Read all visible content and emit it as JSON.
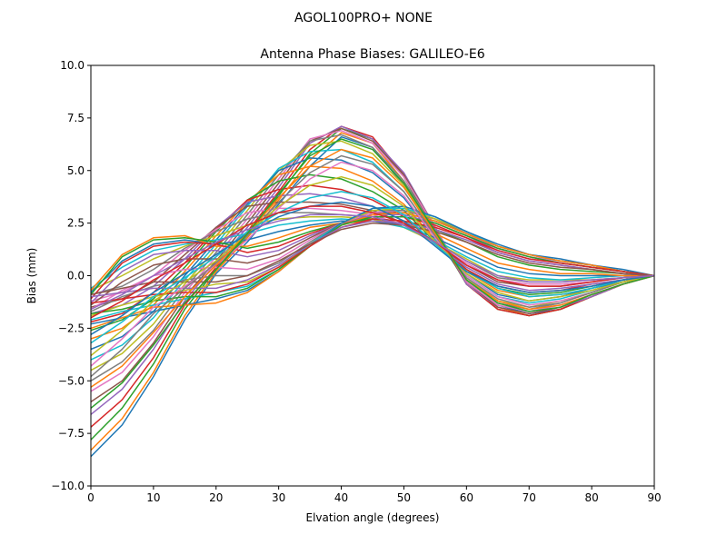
{
  "figure": {
    "suptitle": "AGOL100PRO+     NONE"
  },
  "chart_data": {
    "type": "line",
    "title": "Antenna Phase Biases: GALILEO-E6",
    "xlabel": "Elvation angle (degrees)",
    "ylabel": "Bias (mm)",
    "xlim": [
      0,
      90
    ],
    "ylim": [
      -10,
      10
    ],
    "xticks": [
      0,
      10,
      20,
      30,
      40,
      50,
      60,
      70,
      80,
      90
    ],
    "yticks": [
      -10.0,
      -7.5,
      -5.0,
      -2.5,
      0.0,
      2.5,
      5.0,
      7.5,
      10.0
    ],
    "ytick_labels": [
      "−10.0",
      "−7.5",
      "−5.0",
      "−2.5",
      "0.0",
      "2.5",
      "5.0",
      "7.5",
      "10.0"
    ],
    "grid": false,
    "colors": [
      "#1f77b4",
      "#ff7f0e",
      "#2ca02c",
      "#d62728",
      "#9467bd",
      "#8c564b",
      "#e377c2",
      "#7f7f7f",
      "#bcbd22",
      "#17becf"
    ],
    "x": [
      0,
      5,
      10,
      15,
      20,
      25,
      30,
      35,
      40,
      45,
      50,
      55,
      60,
      65,
      70,
      75,
      80,
      85,
      90
    ],
    "series": [
      {
        "values": [
          -8.6,
          -7.1,
          -4.8,
          -2.1,
          0.1,
          1.6,
          3.4,
          5.2,
          6.6,
          6.1,
          4.3,
          1.9,
          -0.3,
          -1.4,
          -1.8,
          -1.6,
          -1.0,
          -0.4,
          0.0
        ]
      },
      {
        "values": [
          -8.3,
          -6.8,
          -4.6,
          -1.9,
          0.2,
          1.8,
          3.6,
          5.5,
          6.8,
          6.3,
          4.5,
          2.0,
          -0.3,
          -1.5,
          -1.9,
          -1.6,
          -1.0,
          -0.4,
          0.0
        ]
      },
      {
        "values": [
          -7.8,
          -6.3,
          -4.2,
          -1.6,
          0.3,
          1.9,
          3.8,
          5.8,
          7.0,
          6.5,
          4.7,
          2.1,
          -0.4,
          -1.6,
          -1.9,
          -1.6,
          -1.0,
          -0.4,
          0.0
        ]
      },
      {
        "values": [
          -7.2,
          -5.9,
          -3.9,
          -1.4,
          0.4,
          2.1,
          4.0,
          6.0,
          7.1,
          6.6,
          4.8,
          2.2,
          -0.4,
          -1.6,
          -1.9,
          -1.6,
          -1.0,
          -0.4,
          0.0
        ]
      },
      {
        "values": [
          -6.6,
          -5.4,
          -3.5,
          -1.2,
          0.6,
          2.3,
          4.2,
          6.3,
          7.1,
          6.5,
          4.9,
          2.3,
          -0.4,
          -1.5,
          -1.8,
          -1.5,
          -1.0,
          -0.4,
          0.0
        ]
      },
      {
        "values": [
          -6.0,
          -5.0,
          -3.2,
          -1.0,
          0.7,
          2.5,
          4.4,
          6.4,
          7.0,
          6.4,
          4.8,
          2.3,
          -0.3,
          -1.5,
          -1.8,
          -1.5,
          -0.9,
          -0.4,
          0.0
        ]
      },
      {
        "values": [
          -5.5,
          -4.6,
          -2.9,
          -0.8,
          0.9,
          2.7,
          4.6,
          6.5,
          6.9,
          6.3,
          4.7,
          2.3,
          -0.3,
          -1.4,
          -1.7,
          -1.4,
          -0.9,
          -0.4,
          0.0
        ]
      },
      {
        "values": [
          -5.0,
          -4.1,
          -2.6,
          -0.6,
          1.1,
          2.9,
          4.8,
          6.4,
          6.7,
          6.1,
          4.5,
          2.2,
          -0.2,
          -1.3,
          -1.6,
          -1.3,
          -0.8,
          -0.3,
          0.0
        ]
      },
      {
        "values": [
          -4.5,
          -3.7,
          -2.3,
          -0.4,
          1.3,
          3.1,
          5.0,
          6.2,
          6.4,
          5.8,
          4.3,
          2.1,
          -0.1,
          -1.2,
          -1.5,
          -1.2,
          -0.8,
          -0.3,
          0.0
        ]
      },
      {
        "values": [
          -4.0,
          -3.3,
          -2.0,
          -0.2,
          1.5,
          3.3,
          5.1,
          5.9,
          6.0,
          5.4,
          4.0,
          1.9,
          0.0,
          -1.0,
          -1.3,
          -1.1,
          -0.7,
          -0.3,
          0.0
        ]
      },
      {
        "values": [
          -3.5,
          -2.9,
          -1.7,
          0.0,
          1.7,
          3.4,
          5.0,
          5.6,
          5.5,
          4.9,
          3.7,
          1.8,
          0.1,
          -0.9,
          -1.2,
          -1.0,
          -0.6,
          -0.3,
          0.0
        ]
      },
      {
        "values": [
          -3.0,
          -2.5,
          -1.4,
          0.2,
          1.9,
          3.5,
          4.8,
          5.2,
          5.1,
          4.5,
          3.4,
          1.7,
          0.2,
          -0.7,
          -1.0,
          -0.9,
          -0.6,
          -0.2,
          0.0
        ]
      },
      {
        "values": [
          -2.6,
          -2.1,
          -1.1,
          0.4,
          2.1,
          3.6,
          4.5,
          4.8,
          4.6,
          4.0,
          3.1,
          1.6,
          0.3,
          -0.6,
          -0.9,
          -0.8,
          -0.5,
          -0.2,
          0.0
        ]
      },
      {
        "values": [
          -2.2,
          -1.8,
          -0.8,
          0.6,
          2.2,
          3.6,
          4.1,
          4.3,
          4.1,
          3.6,
          2.8,
          1.5,
          0.3,
          -0.5,
          -0.8,
          -0.7,
          -0.4,
          -0.2,
          0.0
        ]
      },
      {
        "values": [
          -1.8,
          -1.4,
          -0.5,
          0.8,
          2.3,
          3.5,
          3.8,
          3.9,
          3.7,
          3.3,
          2.6,
          1.5,
          0.4,
          -0.4,
          -0.7,
          -0.6,
          -0.4,
          -0.2,
          0.0
        ]
      },
      {
        "values": [
          -1.5,
          -1.1,
          -0.3,
          1.0,
          2.3,
          3.3,
          3.5,
          3.5,
          3.4,
          3.1,
          2.5,
          1.5,
          0.5,
          -0.3,
          -0.5,
          -0.5,
          -0.3,
          -0.1,
          0.0
        ]
      },
      {
        "values": [
          -1.2,
          -0.8,
          0.0,
          1.2,
          2.2,
          3.0,
          3.2,
          3.2,
          3.1,
          2.9,
          2.4,
          1.5,
          0.6,
          -0.2,
          -0.4,
          -0.4,
          -0.3,
          -0.1,
          0.0
        ]
      },
      {
        "values": [
          -0.9,
          -0.5,
          0.3,
          1.3,
          2.1,
          2.7,
          3.0,
          3.0,
          2.9,
          2.8,
          2.3,
          1.6,
          0.7,
          -0.1,
          -0.3,
          -0.3,
          -0.2,
          -0.1,
          0.0
        ]
      },
      {
        "values": [
          -0.7,
          0.0,
          0.8,
          1.4,
          1.9,
          2.4,
          2.7,
          2.8,
          2.8,
          2.7,
          2.3,
          1.6,
          0.8,
          0.0,
          -0.2,
          -0.2,
          -0.2,
          -0.1,
          0.0
        ]
      },
      {
        "values": [
          -0.6,
          0.4,
          1.2,
          1.5,
          1.7,
          2.0,
          2.4,
          2.6,
          2.7,
          2.6,
          2.3,
          1.7,
          0.9,
          0.2,
          -0.1,
          -0.2,
          -0.1,
          0.0,
          0.0
        ]
      },
      {
        "values": [
          -0.8,
          0.7,
          1.5,
          1.7,
          1.5,
          1.7,
          2.1,
          2.4,
          2.6,
          2.6,
          2.4,
          1.8,
          1.1,
          0.4,
          0.1,
          0.0,
          0.0,
          0.0,
          0.0
        ]
      },
      {
        "values": [
          -0.7,
          1.0,
          1.8,
          1.9,
          1.4,
          1.4,
          1.8,
          2.3,
          2.5,
          2.6,
          2.5,
          2.0,
          1.3,
          0.6,
          0.3,
          0.1,
          0.1,
          0.0,
          0.0
        ]
      },
      {
        "values": [
          -0.9,
          0.9,
          1.7,
          1.8,
          1.6,
          1.3,
          1.6,
          2.1,
          2.5,
          2.7,
          2.6,
          2.2,
          1.6,
          0.9,
          0.5,
          0.3,
          0.2,
          0.1,
          0.0
        ]
      },
      {
        "values": [
          -1.1,
          0.6,
          1.4,
          1.6,
          1.5,
          1.1,
          1.4,
          2.0,
          2.5,
          2.8,
          2.8,
          2.4,
          1.8,
          1.1,
          0.7,
          0.5,
          0.3,
          0.1,
          0.0
        ]
      },
      {
        "values": [
          -1.3,
          0.2,
          1.0,
          1.2,
          1.2,
          0.9,
          1.2,
          1.9,
          2.5,
          2.9,
          2.9,
          2.5,
          1.9,
          1.2,
          0.8,
          0.6,
          0.4,
          0.2,
          0.0
        ]
      },
      {
        "values": [
          -1.4,
          -0.3,
          0.5,
          0.8,
          0.8,
          0.6,
          1.0,
          1.8,
          2.5,
          3.0,
          3.0,
          2.6,
          2.0,
          1.3,
          0.9,
          0.6,
          0.4,
          0.2,
          0.0
        ]
      },
      {
        "values": [
          -1.6,
          -0.7,
          0.0,
          0.3,
          0.4,
          0.3,
          0.8,
          1.7,
          2.5,
          3.0,
          3.1,
          2.7,
          2.0,
          1.3,
          0.9,
          0.7,
          0.5,
          0.2,
          0.0
        ]
      },
      {
        "values": [
          -1.7,
          -1.0,
          -0.5,
          -0.2,
          0.0,
          0.0,
          0.6,
          1.6,
          2.5,
          3.1,
          3.1,
          2.7,
          2.0,
          1.4,
          1.0,
          0.7,
          0.5,
          0.2,
          0.0
        ]
      },
      {
        "values": [
          -1.9,
          -1.4,
          -1.0,
          -0.7,
          -0.4,
          -0.3,
          0.4,
          1.5,
          2.5,
          3.1,
          3.2,
          2.7,
          2.1,
          1.4,
          1.0,
          0.7,
          0.5,
          0.2,
          0.0
        ]
      },
      {
        "values": [
          -2.1,
          -1.7,
          -1.4,
          -1.1,
          -0.8,
          -0.5,
          0.3,
          1.5,
          2.5,
          3.2,
          3.2,
          2.8,
          2.1,
          1.4,
          1.0,
          0.7,
          0.5,
          0.2,
          0.0
        ]
      },
      {
        "values": [
          -2.3,
          -2.0,
          -1.7,
          -1.4,
          -1.1,
          -0.7,
          0.2,
          1.4,
          2.5,
          3.2,
          3.3,
          2.8,
          2.1,
          1.5,
          1.0,
          0.8,
          0.5,
          0.3,
          0.0
        ]
      },
      {
        "values": [
          -2.5,
          -2.0,
          -1.5,
          -1.4,
          -1.3,
          -0.8,
          0.2,
          1.4,
          2.4,
          2.9,
          3.0,
          2.6,
          2.0,
          1.4,
          1.0,
          0.7,
          0.5,
          0.2,
          0.0
        ]
      },
      {
        "values": [
          -1.8,
          -1.6,
          -1.2,
          -1.0,
          -1.0,
          -0.6,
          0.3,
          1.4,
          2.4,
          2.8,
          2.8,
          2.5,
          1.9,
          1.3,
          0.9,
          0.6,
          0.4,
          0.2,
          0.0
        ]
      },
      {
        "values": [
          -1.3,
          -1.1,
          -0.9,
          -0.8,
          -0.8,
          -0.4,
          0.4,
          1.4,
          2.3,
          2.7,
          2.6,
          2.3,
          1.8,
          1.2,
          0.8,
          0.6,
          0.4,
          0.2,
          0.0
        ]
      },
      {
        "values": [
          -1.0,
          -0.8,
          -0.6,
          -0.6,
          -0.6,
          -0.2,
          0.5,
          1.5,
          2.3,
          2.6,
          2.5,
          2.2,
          1.7,
          1.1,
          0.7,
          0.5,
          0.3,
          0.1,
          0.0
        ]
      },
      {
        "values": [
          -0.9,
          -0.6,
          -0.3,
          -0.3,
          -0.3,
          0.0,
          0.7,
          1.5,
          2.2,
          2.5,
          2.4,
          2.1,
          1.6,
          1.0,
          0.6,
          0.4,
          0.3,
          0.1,
          0.0
        ]
      },
      {
        "values": [
          -4.3,
          -3.0,
          -1.5,
          -0.5,
          0.5,
          1.7,
          3.2,
          4.6,
          5.4,
          5.0,
          3.8,
          1.8,
          0.0,
          -1.0,
          -1.4,
          -1.2,
          -0.8,
          -0.3,
          0.0
        ]
      },
      {
        "values": [
          -4.8,
          -3.5,
          -1.8,
          -0.6,
          0.6,
          1.9,
          3.5,
          4.9,
          5.7,
          5.3,
          4.0,
          1.9,
          -0.1,
          -1.1,
          -1.5,
          -1.3,
          -0.8,
          -0.3,
          0.0
        ]
      },
      {
        "values": [
          -3.8,
          -2.6,
          -1.2,
          -0.3,
          0.7,
          2.0,
          3.3,
          4.3,
          4.7,
          4.3,
          3.3,
          1.6,
          0.1,
          -0.8,
          -1.2,
          -1.0,
          -0.7,
          -0.3,
          0.0
        ]
      },
      {
        "values": [
          -3.2,
          -2.2,
          -1.0,
          -0.1,
          0.9,
          2.1,
          3.0,
          3.7,
          4.0,
          3.7,
          2.9,
          1.5,
          0.2,
          -0.6,
          -1.0,
          -0.9,
          -0.6,
          -0.2,
          0.0
        ]
      },
      {
        "values": [
          -2.8,
          -1.9,
          -0.8,
          0.1,
          1.0,
          2.0,
          2.8,
          3.3,
          3.5,
          3.3,
          2.6,
          1.4,
          0.2,
          -0.5,
          -0.8,
          -0.7,
          -0.5,
          -0.2,
          0.0
        ]
      },
      {
        "values": [
          -5.3,
          -4.3,
          -2.7,
          -1.0,
          0.5,
          2.0,
          3.7,
          5.2,
          6.0,
          5.6,
          4.2,
          2.0,
          -0.2,
          -1.2,
          -1.6,
          -1.4,
          -0.9,
          -0.4,
          0.0
        ]
      },
      {
        "values": [
          -6.3,
          -5.1,
          -3.3,
          -1.3,
          0.3,
          2.0,
          3.9,
          5.7,
          6.5,
          6.0,
          4.4,
          2.1,
          -0.2,
          -1.3,
          -1.7,
          -1.5,
          -0.9,
          -0.4,
          0.0
        ]
      },
      {
        "values": [
          -2.0,
          -1.2,
          -0.2,
          0.6,
          1.5,
          2.4,
          3.0,
          3.3,
          3.3,
          3.0,
          2.5,
          1.6,
          0.5,
          -0.2,
          -0.5,
          -0.5,
          -0.3,
          -0.1,
          0.0
        ]
      },
      {
        "values": [
          -1.6,
          -0.9,
          0.0,
          0.8,
          1.6,
          2.2,
          2.6,
          2.9,
          2.9,
          2.8,
          2.4,
          1.6,
          0.7,
          0.0,
          -0.3,
          -0.3,
          -0.2,
          -0.1,
          0.0
        ]
      }
    ]
  }
}
